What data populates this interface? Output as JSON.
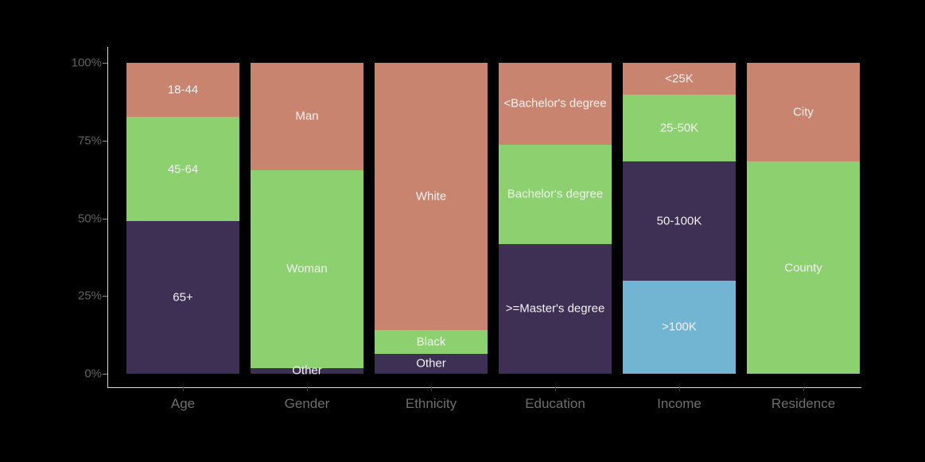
{
  "background_color": "#000000",
  "axis": {
    "line_color": "#d9d9d9",
    "y_tick_color": "#8c8c8c",
    "x_tick_color": "#3f3f3f",
    "y_label_color": "#636363",
    "x_label_color": "#6e6e6e",
    "y_tick_labels": [
      "100%",
      "75%",
      "50%",
      "25%",
      "0%"
    ],
    "y_tick_values": [
      100,
      75,
      50,
      25,
      0
    ]
  },
  "segment_label_color": "#f2f2f2",
  "palette": {
    "salmon": "#c98470",
    "green": "#8dd06f",
    "dark_purple": "#3e2f54",
    "blue": "#72b5d3"
  },
  "chart_data": {
    "type": "bar",
    "subtype": "stacked-percent",
    "title": "",
    "xlabel": "",
    "ylabel": "",
    "ylim": [
      0,
      100
    ],
    "grid": false,
    "legend": "none (labels drawn inside segments)",
    "categories": [
      "Age",
      "Gender",
      "Ethnicity",
      "Education",
      "Income",
      "Residence"
    ],
    "bars": [
      {
        "category": "Age",
        "segments_top_to_bottom": [
          {
            "label": "18-44",
            "value": 17.5,
            "color": "salmon"
          },
          {
            "label": "45-64",
            "value": 33.5,
            "color": "green"
          },
          {
            "label": "65+",
            "value": 49.0,
            "color": "dark_purple"
          }
        ]
      },
      {
        "category": "Gender",
        "segments_top_to_bottom": [
          {
            "label": "Man",
            "value": 34.5,
            "color": "salmon"
          },
          {
            "label": "Woman",
            "value": 63.6,
            "color": "green"
          },
          {
            "label": "Other",
            "value": 1.9,
            "color": "dark_purple"
          }
        ]
      },
      {
        "category": "Ethnicity",
        "segments_top_to_bottom": [
          {
            "label": "White",
            "value": 86.0,
            "color": "salmon"
          },
          {
            "label": "Black",
            "value": 7.6,
            "color": "green"
          },
          {
            "label": "Other",
            "value": 6.4,
            "color": "dark_purple"
          }
        ]
      },
      {
        "category": "Education",
        "segments_top_to_bottom": [
          {
            "label": "<Bachelor's degree",
            "value": 26.3,
            "color": "salmon"
          },
          {
            "label": "Bachelor's degree",
            "value": 32.0,
            "color": "green"
          },
          {
            "label": ">=Master's degree",
            "value": 41.7,
            "color": "dark_purple"
          }
        ]
      },
      {
        "category": "Income",
        "segments_top_to_bottom": [
          {
            "label": "<25K",
            "value": 10.3,
            "color": "salmon"
          },
          {
            "label": "25-50K",
            "value": 21.3,
            "color": "green"
          },
          {
            "label": "50-100K",
            "value": 38.4,
            "color": "dark_purple"
          },
          {
            "label": ">100K",
            "value": 30.0,
            "color": "blue"
          }
        ]
      },
      {
        "category": "Residence",
        "segments_top_to_bottom": [
          {
            "label": "City",
            "value": 31.8,
            "color": "salmon"
          },
          {
            "label": "County",
            "value": 68.2,
            "color": "green"
          }
        ]
      }
    ]
  },
  "layout_note_values_are_percent_of_total": true
}
